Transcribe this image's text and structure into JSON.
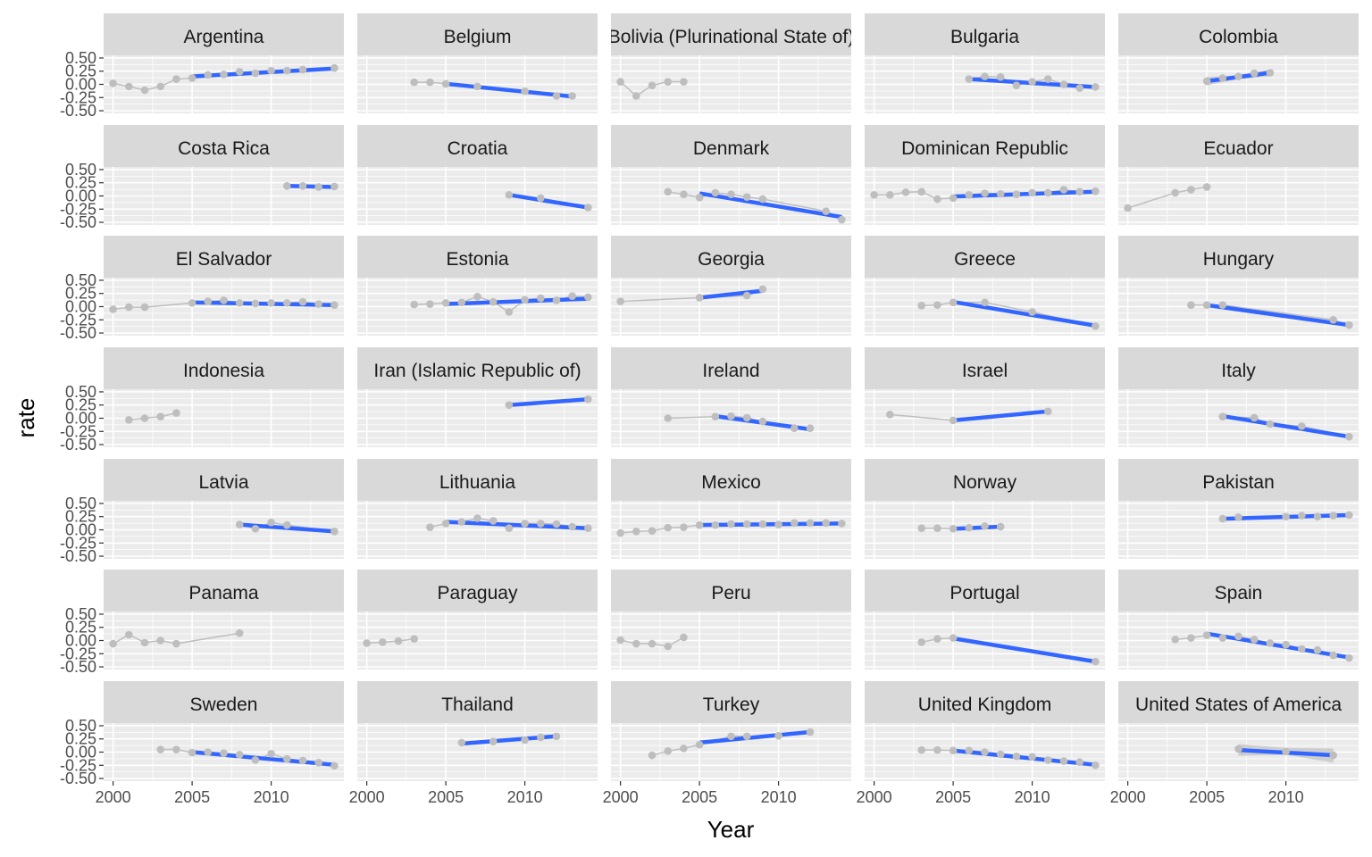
{
  "chart_data": {
    "type": "line",
    "layout": "facet-grid",
    "ncol": 5,
    "xlabel": "Year",
    "ylabel": "rate",
    "xlim": [
      1999.4,
      2014.6
    ],
    "ylim": [
      -0.55,
      0.55
    ],
    "x_ticks": [
      2000,
      2005,
      2010
    ],
    "y_ticks": [
      0.5,
      0.25,
      0.0,
      -0.25,
      -0.5
    ],
    "y_tick_labels": [
      "0.50",
      "0.25",
      "0.00",
      "-0.25",
      "-0.50"
    ],
    "colors": {
      "panel_bg": "#EBEBEB",
      "strip_bg": "#D9D9D9",
      "grid": "#FFFFFF",
      "points": "#BEBEBE",
      "trend_line": "#3366FF",
      "confidence_band": "#C8C8C8"
    },
    "series_encoding": "grey points and line = observed rate; blue line = linear trend",
    "panels": [
      {
        "title": "Argentina",
        "years": [
          2000,
          2001,
          2002,
          2003,
          2004,
          2005,
          2006,
          2007,
          2008,
          2009,
          2010,
          2011,
          2012,
          2014
        ],
        "values": [
          0.02,
          -0.04,
          -0.11,
          -0.04,
          0.1,
          0.12,
          0.18,
          0.19,
          0.24,
          0.21,
          0.26,
          0.26,
          0.28,
          0.31
        ],
        "trend": {
          "x": [
            2005,
            2014
          ],
          "y": [
            0.15,
            0.3
          ]
        }
      },
      {
        "title": "Belgium",
        "years": [
          2003,
          2004,
          2005,
          2007,
          2010,
          2012,
          2013
        ],
        "values": [
          0.04,
          0.04,
          0.01,
          -0.04,
          -0.13,
          -0.22,
          -0.22
        ],
        "trend": {
          "x": [
            2005,
            2013
          ],
          "y": [
            0.01,
            -0.23
          ]
        }
      },
      {
        "title": "Bolivia (Plurinational State of)",
        "years": [
          2000,
          2001,
          2002,
          2003,
          2004
        ],
        "values": [
          0.05,
          -0.22,
          -0.02,
          0.05,
          0.05
        ],
        "trend": null
      },
      {
        "title": "Bulgaria",
        "years": [
          2006,
          2007,
          2008,
          2009,
          2010,
          2011,
          2012,
          2013,
          2014
        ],
        "values": [
          0.1,
          0.15,
          0.14,
          -0.02,
          0.05,
          0.1,
          0.0,
          -0.07,
          -0.05
        ],
        "trend": {
          "x": [
            2006,
            2014
          ],
          "y": [
            0.1,
            -0.05
          ]
        }
      },
      {
        "title": "Colombia",
        "years": [
          2005,
          2006,
          2007,
          2008,
          2009
        ],
        "values": [
          0.06,
          0.12,
          0.15,
          0.21,
          0.22
        ],
        "trend": {
          "x": [
            2005,
            2009
          ],
          "y": [
            0.06,
            0.22
          ]
        },
        "band": {
          "x": [
            2005,
            2007,
            2009
          ],
          "lo": [
            -0.02,
            0.1,
            0.15
          ],
          "hi": [
            0.14,
            0.17,
            0.28
          ]
        }
      },
      {
        "title": "Costa Rica",
        "years": [
          2011,
          2012,
          2013,
          2014
        ],
        "values": [
          0.19,
          0.19,
          0.17,
          0.18
        ],
        "trend": {
          "x": [
            2011,
            2014
          ],
          "y": [
            0.19,
            0.17
          ]
        }
      },
      {
        "title": "Croatia",
        "years": [
          2009,
          2011,
          2014
        ],
        "values": [
          0.02,
          -0.04,
          -0.22
        ],
        "trend": {
          "x": [
            2009,
            2014
          ],
          "y": [
            0.02,
            -0.22
          ]
        }
      },
      {
        "title": "Denmark",
        "years": [
          2003,
          2004,
          2005,
          2006,
          2007,
          2008,
          2009,
          2013,
          2014
        ],
        "values": [
          0.08,
          0.03,
          -0.03,
          0.06,
          0.03,
          -0.02,
          -0.06,
          -0.29,
          -0.45
        ],
        "trend": {
          "x": [
            2005,
            2014
          ],
          "y": [
            0.05,
            -0.4
          ]
        }
      },
      {
        "title": "Dominican Republic",
        "years": [
          2000,
          2001,
          2002,
          2003,
          2004,
          2005,
          2006,
          2007,
          2008,
          2009,
          2010,
          2011,
          2012,
          2013,
          2014
        ],
        "values": [
          0.02,
          0.02,
          0.07,
          0.08,
          -0.06,
          -0.04,
          0.02,
          0.05,
          0.04,
          0.03,
          0.06,
          0.06,
          0.12,
          0.08,
          0.09
        ],
        "trend": {
          "x": [
            2005,
            2014
          ],
          "y": [
            -0.01,
            0.08
          ]
        }
      },
      {
        "title": "Ecuador",
        "years": [
          2000,
          2003,
          2004,
          2005
        ],
        "values": [
          -0.23,
          0.06,
          0.12,
          0.17
        ],
        "trend": null
      },
      {
        "title": "El Salvador",
        "years": [
          2000,
          2001,
          2002,
          2005,
          2006,
          2007,
          2008,
          2009,
          2010,
          2011,
          2012,
          2013,
          2014
        ],
        "values": [
          -0.05,
          -0.01,
          -0.01,
          0.07,
          0.1,
          0.12,
          0.07,
          0.06,
          0.07,
          0.07,
          0.09,
          0.05,
          0.03
        ],
        "trend": {
          "x": [
            2005,
            2014
          ],
          "y": [
            0.08,
            0.03
          ]
        }
      },
      {
        "title": "Estonia",
        "years": [
          2003,
          2004,
          2005,
          2006,
          2007,
          2008,
          2009,
          2010,
          2011,
          2012,
          2013,
          2014
        ],
        "values": [
          0.04,
          0.05,
          0.07,
          0.08,
          0.19,
          0.09,
          -0.1,
          0.13,
          0.16,
          0.12,
          0.2,
          0.18
        ],
        "trend": {
          "x": [
            2005,
            2014
          ],
          "y": [
            0.05,
            0.15
          ]
        }
      },
      {
        "title": "Georgia",
        "years": [
          2000,
          2005,
          2008,
          2009
        ],
        "values": [
          0.1,
          0.17,
          0.21,
          0.33
        ],
        "trend": {
          "x": [
            2005,
            2009
          ],
          "y": [
            0.17,
            0.3
          ]
        }
      },
      {
        "title": "Greece",
        "years": [
          2003,
          2004,
          2005,
          2007,
          2010,
          2014
        ],
        "values": [
          0.02,
          0.03,
          0.08,
          0.08,
          -0.1,
          -0.37
        ],
        "trend": {
          "x": [
            2005,
            2014
          ],
          "y": [
            0.09,
            -0.36
          ]
        }
      },
      {
        "title": "Hungary",
        "years": [
          2004,
          2005,
          2006,
          2013,
          2014
        ],
        "values": [
          0.03,
          0.03,
          0.03,
          -0.25,
          -0.35
        ],
        "trend": {
          "x": [
            2005,
            2014
          ],
          "y": [
            0.03,
            -0.35
          ]
        }
      },
      {
        "title": "Indonesia",
        "years": [
          2001,
          2002,
          2003,
          2004
        ],
        "values": [
          -0.03,
          0.0,
          0.03,
          0.1
        ],
        "trend": null
      },
      {
        "title": "Iran (Islamic Republic of)",
        "years": [
          2009,
          2014
        ],
        "values": [
          0.25,
          0.36
        ],
        "trend": {
          "x": [
            2009,
            2014
          ],
          "y": [
            0.25,
            0.36
          ]
        }
      },
      {
        "title": "Ireland",
        "years": [
          2003,
          2006,
          2007,
          2008,
          2009,
          2011,
          2012
        ],
        "values": [
          0.0,
          0.03,
          0.04,
          0.01,
          -0.06,
          -0.19,
          -0.19
        ],
        "trend": {
          "x": [
            2006,
            2012
          ],
          "y": [
            0.04,
            -0.21
          ]
        }
      },
      {
        "title": "Israel",
        "years": [
          2001,
          2005,
          2011
        ],
        "values": [
          0.07,
          -0.04,
          0.13
        ],
        "trend": {
          "x": [
            2005,
            2011
          ],
          "y": [
            -0.04,
            0.13
          ]
        }
      },
      {
        "title": "Italy",
        "years": [
          2006,
          2008,
          2009,
          2011,
          2014
        ],
        "values": [
          0.03,
          0.01,
          -0.11,
          -0.15,
          -0.35
        ],
        "trend": {
          "x": [
            2006,
            2014
          ],
          "y": [
            0.04,
            -0.35
          ]
        }
      },
      {
        "title": "Latvia",
        "years": [
          2008,
          2009,
          2010,
          2011,
          2014
        ],
        "values": [
          0.1,
          0.02,
          0.14,
          0.09,
          -0.03
        ],
        "trend": {
          "x": [
            2008,
            2014
          ],
          "y": [
            0.1,
            -0.03
          ]
        }
      },
      {
        "title": "Lithuania",
        "years": [
          2004,
          2005,
          2006,
          2007,
          2008,
          2009,
          2010,
          2011,
          2012,
          2013,
          2014
        ],
        "values": [
          0.05,
          0.12,
          0.15,
          0.22,
          0.17,
          0.03,
          0.12,
          0.12,
          0.11,
          0.06,
          0.03
        ],
        "trend": {
          "x": [
            2005,
            2014
          ],
          "y": [
            0.15,
            0.03
          ]
        }
      },
      {
        "title": "Mexico",
        "years": [
          2000,
          2001,
          2002,
          2003,
          2004,
          2005,
          2006,
          2007,
          2008,
          2009,
          2010,
          2011,
          2012,
          2013,
          2014
        ],
        "values": [
          -0.06,
          -0.03,
          -0.02,
          0.04,
          0.05,
          0.09,
          0.09,
          0.11,
          0.11,
          0.11,
          0.1,
          0.13,
          0.13,
          0.13,
          0.12
        ],
        "trend": {
          "x": [
            2005,
            2014
          ],
          "y": [
            0.09,
            0.12
          ]
        }
      },
      {
        "title": "Norway",
        "years": [
          2003,
          2004,
          2005,
          2006,
          2007,
          2008
        ],
        "values": [
          0.03,
          0.03,
          0.02,
          0.04,
          0.07,
          0.06
        ],
        "trend": {
          "x": [
            2005,
            2008
          ],
          "y": [
            0.02,
            0.06
          ]
        }
      },
      {
        "title": "Pakistan",
        "years": [
          2006,
          2007,
          2010,
          2011,
          2012,
          2013,
          2014
        ],
        "values": [
          0.21,
          0.24,
          0.25,
          0.27,
          0.25,
          0.27,
          0.28
        ],
        "trend": {
          "x": [
            2006,
            2014
          ],
          "y": [
            0.21,
            0.28
          ]
        }
      },
      {
        "title": "Panama",
        "years": [
          2000,
          2001,
          2002,
          2003,
          2004,
          2008
        ],
        "values": [
          -0.06,
          0.11,
          -0.04,
          0.0,
          -0.06,
          0.14
        ],
        "trend": null
      },
      {
        "title": "Paraguay",
        "years": [
          2000,
          2001,
          2002,
          2003
        ],
        "values": [
          -0.05,
          -0.03,
          -0.01,
          0.03
        ],
        "trend": null
      },
      {
        "title": "Peru",
        "years": [
          2000,
          2001,
          2002,
          2003,
          2004
        ],
        "values": [
          0.01,
          -0.06,
          -0.06,
          -0.11,
          0.06
        ],
        "trend": null
      },
      {
        "title": "Portugal",
        "years": [
          2003,
          2004,
          2005,
          2014
        ],
        "values": [
          -0.03,
          0.03,
          0.05,
          -0.4
        ],
        "trend": {
          "x": [
            2005,
            2014
          ],
          "y": [
            0.04,
            -0.4
          ]
        }
      },
      {
        "title": "Spain",
        "years": [
          2003,
          2004,
          2005,
          2006,
          2007,
          2008,
          2009,
          2010,
          2011,
          2012,
          2013,
          2014
        ],
        "values": [
          0.02,
          0.05,
          0.1,
          0.05,
          0.08,
          0.02,
          -0.05,
          -0.08,
          -0.16,
          -0.18,
          -0.28,
          -0.33
        ],
        "trend": {
          "x": [
            2005,
            2014
          ],
          "y": [
            0.13,
            -0.32
          ]
        }
      },
      {
        "title": "Sweden",
        "years": [
          2003,
          2004,
          2005,
          2006,
          2007,
          2008,
          2009,
          2010,
          2011,
          2012,
          2013,
          2014
        ],
        "values": [
          0.05,
          0.05,
          -0.01,
          0.0,
          -0.02,
          -0.05,
          -0.15,
          -0.03,
          -0.13,
          -0.16,
          -0.2,
          -0.26
        ],
        "trend": {
          "x": [
            2005,
            2014
          ],
          "y": [
            0.0,
            -0.24
          ]
        }
      },
      {
        "title": "Thailand",
        "years": [
          2006,
          2008,
          2010,
          2011,
          2012
        ],
        "values": [
          0.18,
          0.2,
          0.23,
          0.28,
          0.3
        ],
        "trend": {
          "x": [
            2006,
            2012
          ],
          "y": [
            0.16,
            0.3
          ]
        }
      },
      {
        "title": "Turkey",
        "years": [
          2002,
          2003,
          2004,
          2005,
          2007,
          2008,
          2010,
          2012
        ],
        "values": [
          -0.06,
          0.02,
          0.07,
          0.14,
          0.3,
          0.3,
          0.31,
          0.38
        ],
        "trend": {
          "x": [
            2005,
            2012
          ],
          "y": [
            0.18,
            0.38
          ]
        }
      },
      {
        "title": "United Kingdom",
        "years": [
          2003,
          2004,
          2005,
          2006,
          2007,
          2008,
          2009,
          2010,
          2011,
          2012,
          2013,
          2014
        ],
        "values": [
          0.04,
          0.04,
          0.03,
          0.03,
          0.0,
          -0.04,
          -0.08,
          -0.09,
          -0.15,
          -0.17,
          -0.19,
          -0.25
        ],
        "trend": {
          "x": [
            2005,
            2014
          ],
          "y": [
            0.03,
            -0.24
          ]
        }
      },
      {
        "title": "United States of America",
        "years": [
          2007,
          2010,
          2013
        ],
        "values": [
          0.06,
          0.01,
          -0.06
        ],
        "trend": {
          "x": [
            2007,
            2013
          ],
          "y": [
            0.04,
            -0.06
          ]
        },
        "band": {
          "x": [
            2007,
            2010,
            2013
          ],
          "lo": [
            -0.07,
            -0.05,
            -0.2
          ],
          "hi": [
            0.15,
            0.08,
            0.07
          ]
        }
      }
    ]
  }
}
